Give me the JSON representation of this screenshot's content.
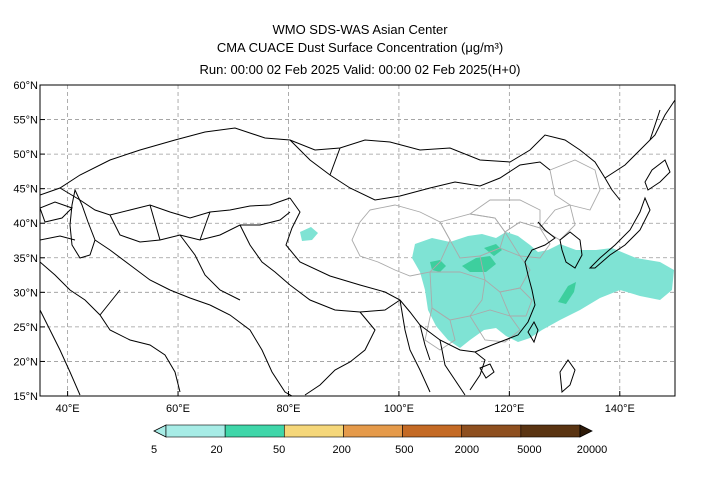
{
  "header": {
    "line1": "WMO SDS-WAS Asian Center",
    "line2": "CMA CUACE Dust Surface Concentration (μg/m³)",
    "line3": "Run: 00:00 02 Feb 2025    Valid: 00:00 02 Feb 2025(H+0)"
  },
  "map": {
    "lon_range": [
      35,
      150
    ],
    "lat_range": [
      15,
      60
    ],
    "lat_ticks": [
      {
        "value": 60,
        "label": "60°N"
      },
      {
        "value": 55,
        "label": "55°N"
      },
      {
        "value": 50,
        "label": "50°N"
      },
      {
        "value": 45,
        "label": "45°N"
      },
      {
        "value": 40,
        "label": "40°N"
      },
      {
        "value": 35,
        "label": "35°N"
      },
      {
        "value": 30,
        "label": "30°N"
      },
      {
        "value": 25,
        "label": "25°N"
      },
      {
        "value": 20,
        "label": "20°N"
      },
      {
        "value": 15,
        "label": "15°N"
      }
    ],
    "lon_ticks": [
      {
        "value": 40,
        "label": "40°E"
      },
      {
        "value": 60,
        "label": "60°E"
      },
      {
        "value": 80,
        "label": "80°E"
      },
      {
        "value": 100,
        "label": "100°E"
      },
      {
        "value": 120,
        "label": "120°E"
      },
      {
        "value": 140,
        "label": "140°E"
      }
    ],
    "grid": "dashed",
    "colors": {
      "border": "#000000",
      "province": "#aaaaaa",
      "dust_low": "#7fe3d4",
      "dust_mid": "#3dcf9e"
    }
  },
  "legend": {
    "labels": [
      "5",
      "20",
      "50",
      "200",
      "500",
      "2000",
      "5000",
      "20000"
    ],
    "colors": [
      "#a7ece6",
      "#3fd6a9",
      "#f5d77a",
      "#e59a4a",
      "#c46a25",
      "#8e4f1f",
      "#5a3412",
      "#2e1a08"
    ]
  }
}
